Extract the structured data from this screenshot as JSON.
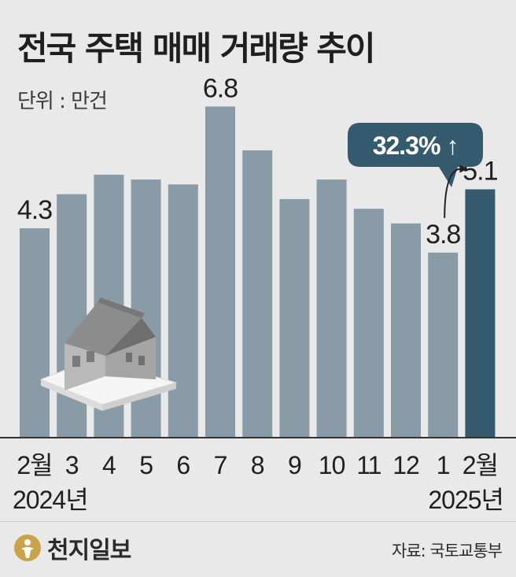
{
  "header": {
    "title": "전국 주택 매매 거래량 추이",
    "unit": "단위 : 만건"
  },
  "chart_data": {
    "type": "bar",
    "title": "전국 주택 매매 거래량 추이",
    "unit": "단위 : 만건",
    "categories": [
      "2월",
      "3",
      "4",
      "5",
      "6",
      "7",
      "8",
      "9",
      "10",
      "11",
      "12",
      "1",
      "2월"
    ],
    "year_labels": [
      {
        "text": "2024년",
        "align": "left"
      },
      {
        "text": "2025년",
        "align": "right"
      }
    ],
    "values": [
      4.3,
      5.0,
      5.4,
      5.3,
      5.2,
      6.8,
      5.9,
      4.9,
      5.3,
      4.7,
      4.4,
      3.8,
      5.1
    ],
    "labeled_values": {
      "0": "4.3",
      "5": "6.8",
      "11": "3.8",
      "12": "5.1"
    },
    "highlight_index": 12,
    "callout": {
      "text": "32.3% ↑"
    },
    "ylim": [
      0,
      7.5
    ],
    "grid": false,
    "colors": {
      "bar": "#8a9ba8",
      "highlight": "#355a6e",
      "callout": "#355a6e",
      "baseline": "#333333",
      "text": "#1f1f1f"
    }
  },
  "footer": {
    "logo": "천지일보",
    "source": "자료: 국토교통부"
  }
}
